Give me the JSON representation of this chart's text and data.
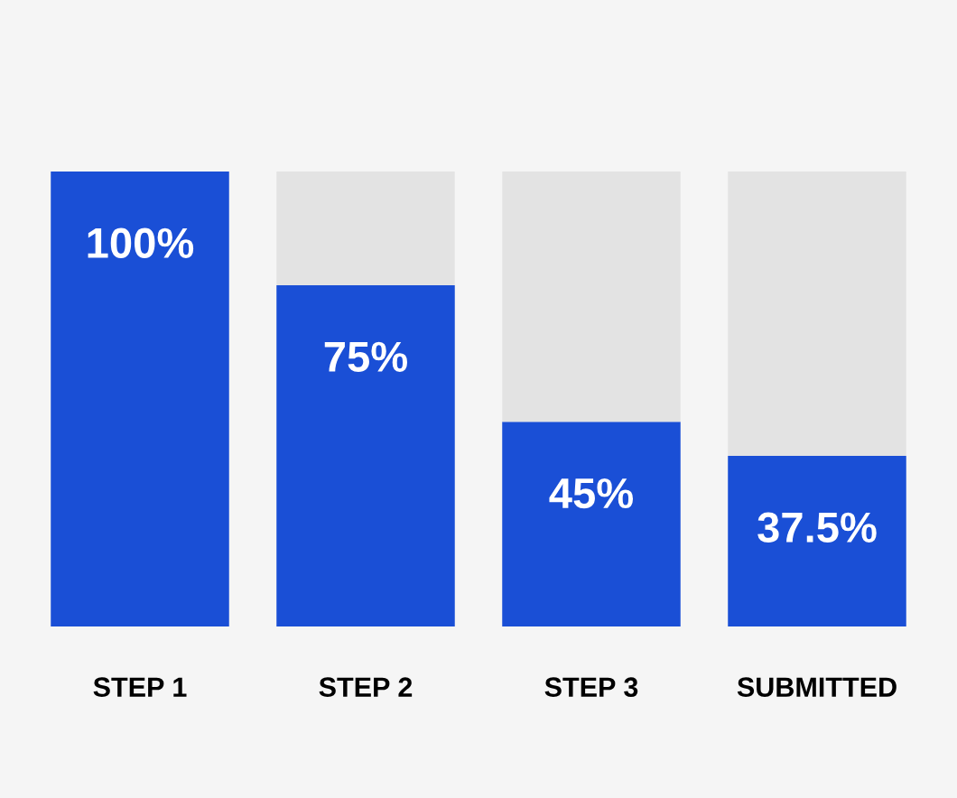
{
  "chart_data": {
    "type": "bar",
    "categories": [
      "STEP 1",
      "STEP 2",
      "STEP 3",
      "SUBMITTED"
    ],
    "stacked": true,
    "series": [
      {
        "color": "#1a4fd6",
        "values": [
          100,
          75,
          45,
          37.5
        ],
        "value_labels": [
          "100%",
          "75%",
          "45%",
          "37.5%"
        ]
      },
      {
        "color": "#e3e3e3",
        "values": [
          null,
          25,
          55,
          62.5
        ]
      }
    ],
    "tick_labels": "x",
    "grid": false
  }
}
